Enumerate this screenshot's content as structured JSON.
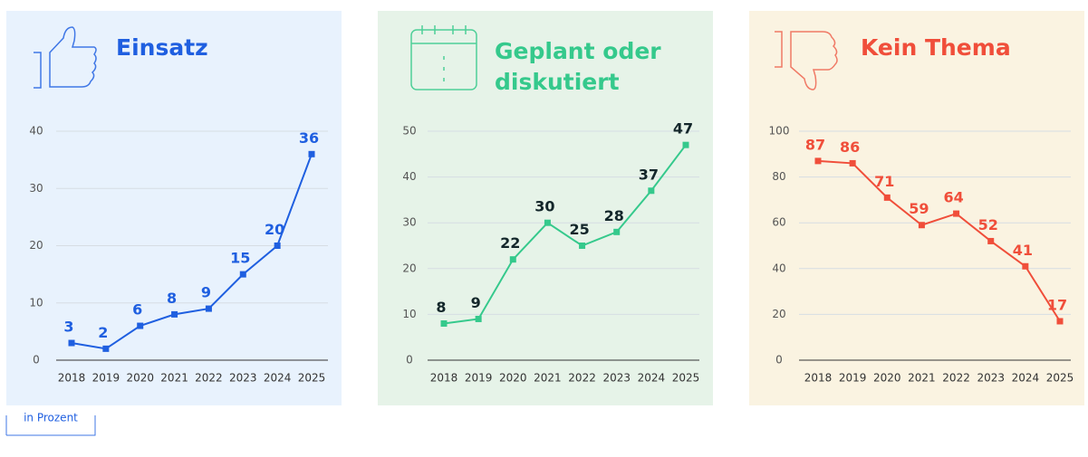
{
  "chart_data": [
    {
      "type": "line",
      "title": "Einsatz",
      "categories": [
        "2018",
        "2019",
        "2020",
        "2021",
        "2022",
        "2023",
        "2024",
        "2025"
      ],
      "values": [
        3,
        2,
        6,
        8,
        9,
        15,
        20,
        36
      ],
      "color": "#1f5fe0",
      "label_color": "#1f5fe0",
      "ylim": [
        0,
        40
      ],
      "yticks": [
        0,
        10,
        20,
        30,
        40
      ],
      "grid": true
    },
    {
      "type": "line",
      "title": "Geplant oder diskutiert",
      "categories": [
        "2018",
        "2019",
        "2020",
        "2021",
        "2022",
        "2023",
        "2024",
        "2025"
      ],
      "values": [
        8,
        9,
        22,
        30,
        25,
        28,
        37,
        47
      ],
      "color": "#35c98c",
      "label_color": "#13262a",
      "ylim": [
        0,
        50
      ],
      "yticks": [
        0,
        10,
        20,
        30,
        40,
        50
      ],
      "grid": true
    },
    {
      "type": "line",
      "title": "Kein Thema",
      "categories": [
        "2018",
        "2019",
        "2020",
        "2021",
        "2022",
        "2023",
        "2024",
        "2025"
      ],
      "values": [
        87,
        86,
        71,
        59,
        64,
        52,
        41,
        17
      ],
      "color": "#f04e3a",
      "label_color": "#f04e3a",
      "ylim": [
        0,
        100
      ],
      "yticks": [
        0,
        20,
        40,
        60,
        80,
        100
      ],
      "grid": true
    }
  ],
  "note": "in Prozent"
}
